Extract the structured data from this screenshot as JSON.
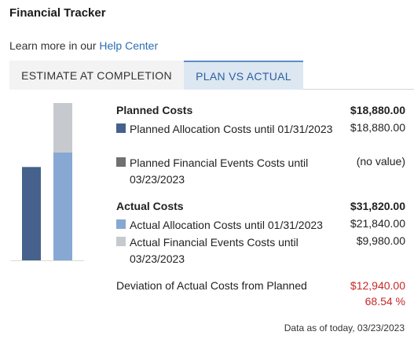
{
  "header": {
    "title": "Financial Tracker",
    "help_prefix": "Learn more in our",
    "help_link": "Help Center"
  },
  "tabs": [
    {
      "label": "ESTIMATE AT COMPLETION",
      "active": false
    },
    {
      "label": "PLAN VS ACTUAL",
      "active": true
    }
  ],
  "planned": {
    "heading": "Planned Costs",
    "total": "$18,880.00",
    "items": [
      {
        "label": "Planned Allocation Costs until 01/31/2023",
        "value": "$18,880.00",
        "color": "#46618c"
      },
      {
        "label": "Planned Financial Events Costs until 03/23/2023",
        "value": "(no value)",
        "color": "#707070"
      }
    ]
  },
  "actual": {
    "heading": "Actual Costs",
    "total": "$31,820.00",
    "items": [
      {
        "label": "Actual Allocation Costs until 01/31/2023",
        "value": "$21,840.00",
        "color": "#87a8d2"
      },
      {
        "label": "Actual Financial Events Costs until 03/23/2023",
        "value": "$9,980.00",
        "color": "#c6c9ce"
      }
    ]
  },
  "deviation": {
    "label": "Deviation of Actual Costs from Planned",
    "amount": "$12,940.00",
    "percent": "68.54 %"
  },
  "footer": {
    "as_of": "Data as of today, 03/23/2023"
  },
  "chart_data": {
    "type": "bar",
    "stacked": true,
    "categories": [
      "Planned Costs",
      "Actual Costs"
    ],
    "series": [
      {
        "name": "Planned Allocation Costs until 01/31/2023",
        "values": [
          18880,
          0
        ],
        "color": "#46618c"
      },
      {
        "name": "Planned Financial Events Costs until 03/23/2023",
        "values": [
          0,
          0
        ],
        "color": "#707070"
      },
      {
        "name": "Actual Allocation Costs until 01/31/2023",
        "values": [
          0,
          21840
        ],
        "color": "#87a8d2"
      },
      {
        "name": "Actual Financial Events Costs until 03/23/2023",
        "values": [
          0,
          9980
        ],
        "color": "#c6c9ce"
      }
    ],
    "ylim": [
      0,
      31820
    ],
    "grid": false,
    "axis_color": "#d9d9d9"
  }
}
